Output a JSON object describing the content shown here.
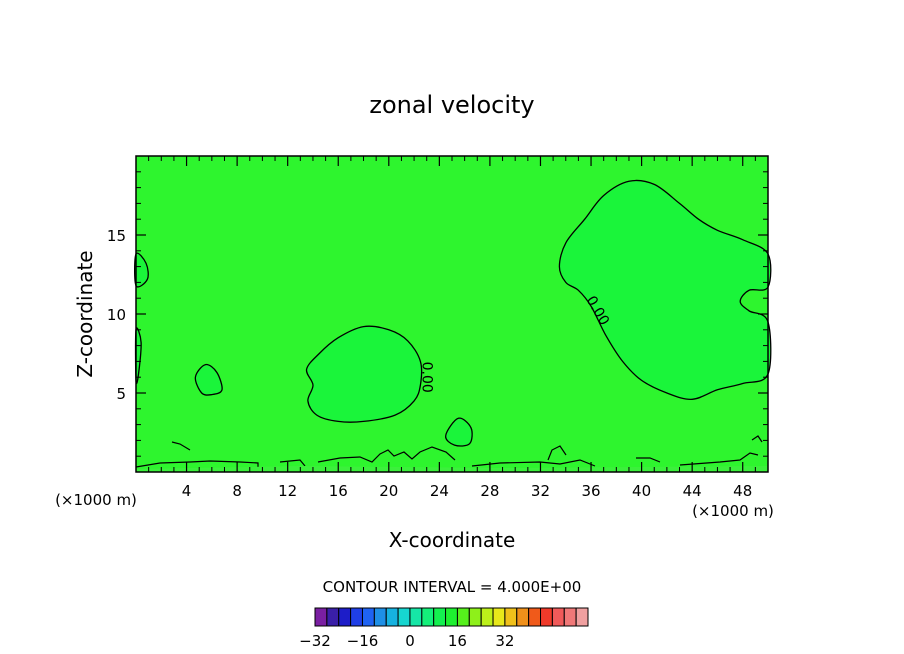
{
  "chart_data": {
    "type": "contour",
    "title": "zonal velocity",
    "xlabel": "X-coordinate",
    "ylabel": "Z-coordinate",
    "x_unit": "(×1000 m)",
    "xlim": [
      0,
      50
    ],
    "ylim": [
      0,
      20
    ],
    "xticks": [
      4,
      8,
      12,
      16,
      20,
      24,
      28,
      32,
      36,
      40,
      44,
      48
    ],
    "yticks": [
      5,
      10,
      15
    ],
    "contour_interval_text": "CONTOUR INTERVAL = 4.000E+00",
    "contour_labels": [
      {
        "text": "0.00",
        "x": 23,
        "y": 6
      },
      {
        "text": "0.00",
        "x": 36.5,
        "y": 10.2
      }
    ],
    "positive_regions": [
      {
        "name": "upper-right-positive",
        "points": [
          [
            33.5,
            13
          ],
          [
            34,
            14.5
          ],
          [
            35.5,
            16
          ],
          [
            37,
            17.5
          ],
          [
            39,
            18.4
          ],
          [
            41,
            18.2
          ],
          [
            43,
            17
          ],
          [
            44.5,
            16
          ],
          [
            46,
            15.3
          ],
          [
            48,
            14.7
          ],
          [
            50,
            13.8
          ],
          [
            50,
            11.7
          ],
          [
            48.5,
            11.5
          ],
          [
            47.8,
            10.8
          ],
          [
            48.5,
            10.2
          ],
          [
            50,
            9.5
          ],
          [
            50,
            6.2
          ],
          [
            48,
            5.6
          ],
          [
            46,
            5.2
          ],
          [
            44,
            4.6
          ],
          [
            42,
            5
          ],
          [
            40,
            5.8
          ],
          [
            38.5,
            7
          ],
          [
            37.2,
            8.6
          ],
          [
            36,
            10.5
          ],
          [
            35,
            11.5
          ],
          [
            34,
            12
          ]
        ]
      },
      {
        "name": "middle-positive",
        "points": [
          [
            14,
            5.5
          ],
          [
            13.5,
            6.5
          ],
          [
            14.5,
            7.5
          ],
          [
            16,
            8.5
          ],
          [
            18,
            9.2
          ],
          [
            20,
            9
          ],
          [
            21.5,
            8.3
          ],
          [
            22.5,
            7
          ],
          [
            22.5,
            5.5
          ],
          [
            22,
            4.5
          ],
          [
            20.5,
            3.6
          ],
          [
            18,
            3.2
          ],
          [
            16,
            3.2
          ],
          [
            14.3,
            3.6
          ],
          [
            13.6,
            4.5
          ]
        ]
      },
      {
        "name": "small-positive-1",
        "points": [
          [
            4.7,
            6
          ],
          [
            5.5,
            6.8
          ],
          [
            6.4,
            6.3
          ],
          [
            6.8,
            5.2
          ],
          [
            6,
            4.9
          ],
          [
            5.2,
            5
          ]
        ]
      },
      {
        "name": "small-positive-2",
        "points": [
          [
            24.5,
            2.3
          ],
          [
            25.5,
            3.4
          ],
          [
            26.5,
            2.8
          ],
          [
            26.4,
            1.8
          ],
          [
            25.2,
            1.7
          ]
        ]
      },
      {
        "name": "left-edge-positive-1",
        "points": [
          [
            0,
            13.8
          ],
          [
            0.8,
            13.2
          ],
          [
            0.9,
            12.2
          ],
          [
            0,
            11.8
          ]
        ]
      },
      {
        "name": "left-edge-positive-2",
        "points": [
          [
            0,
            9
          ],
          [
            0.4,
            8.2
          ],
          [
            0.2,
            6.2
          ],
          [
            0,
            5.8
          ]
        ]
      }
    ],
    "colorbar": {
      "colors": [
        "#7a1fa2",
        "#3a1fa8",
        "#1d1dc8",
        "#1f3fe6",
        "#1f63f2",
        "#1e8fe6",
        "#16b2e0",
        "#16d6d0",
        "#16e6a6",
        "#14f07a",
        "#14f050",
        "#1ef030",
        "#56f01c",
        "#8ef01a",
        "#bcf01a",
        "#e8e81a",
        "#f0c01a",
        "#f0901a",
        "#f05a1a",
        "#f03a2a",
        "#f05a5a",
        "#f07878",
        "#f0a0a0"
      ],
      "tick_labels": [
        "-32",
        "-16",
        "0",
        "16",
        "32"
      ],
      "tick_values": [
        -32,
        -16,
        0,
        16,
        32
      ]
    },
    "background_color": "#2ef52e",
    "positive_color": "#1af53a"
  }
}
